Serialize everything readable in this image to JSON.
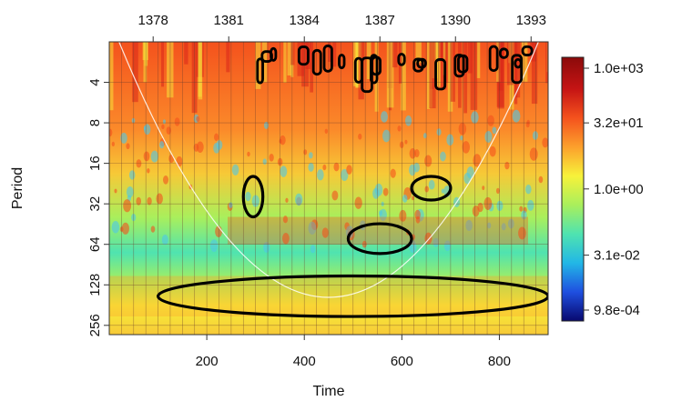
{
  "chart_data": {
    "type": "heatmap",
    "subtype": "wavelet-power-spectrum",
    "title": "",
    "xlabel": "Time",
    "ylabel": "Period",
    "xlim": [
      0,
      900
    ],
    "ylim": [
      2,
      300
    ],
    "y_scale": "log2",
    "y_reversed": true,
    "x_ticks": [
      200,
      400,
      600,
      800
    ],
    "y_ticks": [
      4,
      8,
      16,
      32,
      64,
      128,
      256
    ],
    "top_axis": {
      "ticks": [
        "1378",
        "1381",
        "1384",
        "1387",
        "1390",
        "1393"
      ],
      "tick_times": [
        90,
        245,
        400,
        555,
        710,
        865
      ]
    },
    "grid": true,
    "colorbar": {
      "scale": "log",
      "range": [
        0.00098,
        1000
      ],
      "tick_labels": [
        "1.0e+03",
        "3.2e+01",
        "1.0e+00",
        "3.1e-02",
        "9.8e-04"
      ],
      "tick_values": [
        1000,
        32,
        1.0,
        0.031,
        0.00098
      ],
      "placement": "right",
      "colors": [
        "#08086e",
        "#1f4fe0",
        "#22b7e6",
        "#4fe3b0",
        "#a9ef5c",
        "#f7f23a",
        "#fca02c",
        "#f4521d",
        "#c51414",
        "#8b0a0a"
      ]
    },
    "significance_contour_color": "#000000",
    "cone_of_influence_color": "#ffffff",
    "significant_regions": [
      {
        "time": [
          275,
          315
        ],
        "period": [
          20,
          40
        ]
      },
      {
        "time": [
          490,
          620
        ],
        "period": [
          45,
          75
        ]
      },
      {
        "time": [
          620,
          700
        ],
        "period": [
          20,
          30
        ]
      },
      {
        "time": [
          100,
          900
        ],
        "period": [
          110,
          220
        ]
      }
    ]
  }
}
